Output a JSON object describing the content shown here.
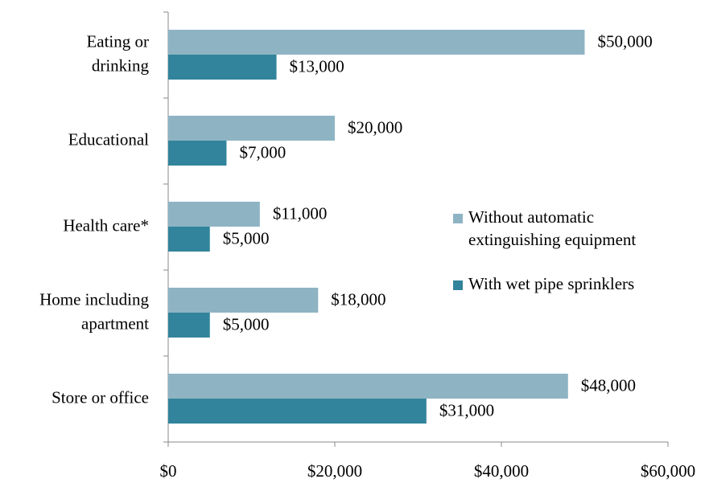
{
  "chart_data": {
    "type": "bar",
    "orientation": "horizontal",
    "categories": [
      [
        "Eating or",
        "drinking"
      ],
      [
        "Educational"
      ],
      [
        "Health care*"
      ],
      [
        "Home including",
        "apartment"
      ],
      [
        "Store or office"
      ]
    ],
    "series": [
      {
        "name": [
          "Without automatic",
          "extinguishing equipment"
        ],
        "color": "#8eb4c4",
        "values": [
          50000,
          20000,
          11000,
          18000,
          48000
        ],
        "value_labels": [
          "$50,000",
          "$20,000",
          "$11,000",
          "$18,000",
          "$48,000"
        ]
      },
      {
        "name": [
          "With wet pipe sprinklers"
        ],
        "color": "#31849b",
        "values": [
          13000,
          7000,
          5000,
          5000,
          31000
        ],
        "value_labels": [
          "$13,000",
          "$7,000",
          "$5,000",
          "$5,000",
          "$31,000"
        ]
      }
    ],
    "xlim": [
      0,
      60000
    ],
    "xticks": [
      {
        "value": 0,
        "label": "$0"
      },
      {
        "value": 20000,
        "label": "$20,000"
      },
      {
        "value": 40000,
        "label": "$40,000"
      },
      {
        "value": 60000,
        "label": "$60,000"
      }
    ],
    "legend": "right"
  }
}
